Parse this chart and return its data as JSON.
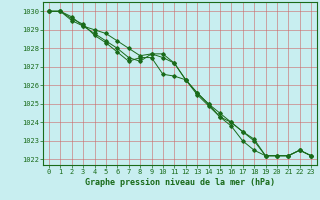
{
  "title": "Graphe pression niveau de la mer (hPa)",
  "bg_color": "#c8eef0",
  "grid_major_color": "#cc6666",
  "grid_minor_color": "#ddaaaa",
  "line_color": "#1a6b1a",
  "marker_color": "#1a6b1a",
  "hours": [
    0,
    1,
    2,
    3,
    4,
    5,
    6,
    7,
    8,
    9,
    10,
    11,
    12,
    13,
    14,
    15,
    16,
    17,
    18,
    19,
    20,
    21,
    22,
    23
  ],
  "series1": [
    1030.0,
    1030.0,
    1029.7,
    1029.2,
    1029.0,
    1028.8,
    1028.4,
    1028.0,
    1027.6,
    1027.7,
    1027.5,
    1027.2,
    1026.3,
    1025.6,
    1025.0,
    1024.5,
    1024.0,
    1023.5,
    1023.0,
    1022.2,
    1022.2,
    1022.2,
    1022.5,
    1022.2
  ],
  "series2": [
    1030.0,
    1030.0,
    1029.5,
    1029.2,
    1028.8,
    1028.4,
    1028.0,
    1027.5,
    1027.3,
    1027.7,
    1027.7,
    1027.2,
    1026.3,
    1025.6,
    1025.0,
    1024.3,
    1024.0,
    1023.5,
    1023.1,
    1022.2,
    1022.2,
    1022.2,
    1022.5,
    1022.2
  ],
  "series3": [
    1030.0,
    1030.0,
    1029.6,
    1029.3,
    1028.7,
    1028.3,
    1027.8,
    1027.3,
    1027.5,
    1027.5,
    1026.6,
    1026.5,
    1026.3,
    1025.5,
    1024.9,
    1024.3,
    1023.8,
    1023.0,
    1022.5,
    1022.2,
    1022.2,
    1022.2,
    1022.5,
    1022.2
  ],
  "ylim_min": 1021.7,
  "ylim_max": 1030.5,
  "yticks": [
    1022,
    1023,
    1024,
    1025,
    1026,
    1027,
    1028,
    1029,
    1030
  ],
  "tick_fontsize": 5,
  "label_fontsize": 6
}
